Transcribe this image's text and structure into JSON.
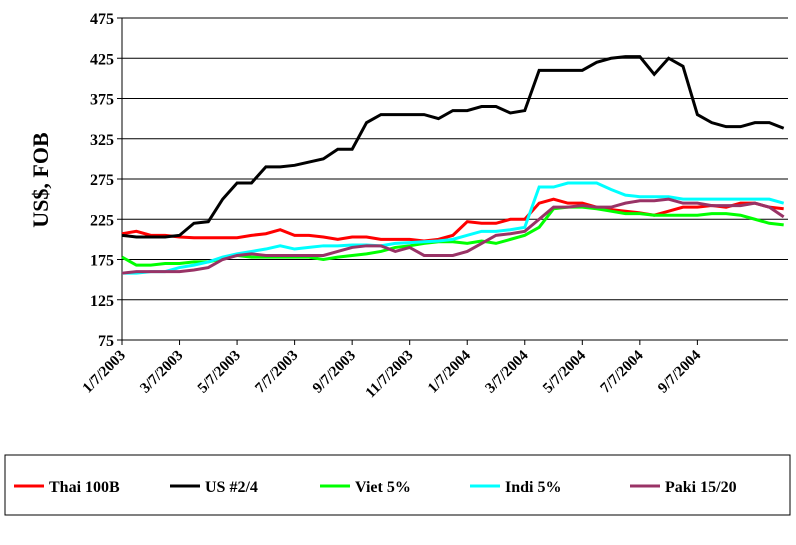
{
  "chart_data": {
    "type": "line",
    "y_label": "US$, FOB",
    "categories": [
      "1/7/2003",
      null,
      null,
      null,
      "3/7/2003",
      null,
      null,
      null,
      "5/7/2003",
      null,
      null,
      null,
      "7/7/2003",
      null,
      null,
      null,
      "9/7/2003",
      null,
      null,
      null,
      "11/7/2003",
      null,
      null,
      null,
      "1/7/2004",
      null,
      null,
      null,
      "3/7/2004",
      null,
      null,
      null,
      "5/7/2004",
      null,
      null,
      null,
      "7/7/2004",
      null,
      null,
      null,
      "9/7/2004",
      null,
      null,
      null,
      null,
      null,
      null
    ],
    "ylim": [
      75,
      475
    ],
    "yticks": [
      75,
      125,
      175,
      225,
      275,
      325,
      375,
      425,
      475
    ],
    "grid": true,
    "legend": "bottom",
    "series": [
      {
        "name": "Thai 100B",
        "color": "#ff0000",
        "values": [
          207,
          210,
          205,
          205,
          203,
          202,
          202,
          202,
          202,
          205,
          207,
          212,
          205,
          205,
          203,
          200,
          203,
          203,
          200,
          200,
          200,
          198,
          200,
          205,
          222,
          220,
          220,
          225,
          225,
          245,
          250,
          245,
          245,
          240,
          237,
          235,
          233,
          230,
          235,
          240,
          240,
          242,
          240,
          245,
          245,
          240,
          238
        ]
      },
      {
        "name": "US #2/4",
        "color": "#000000",
        "values": [
          205,
          203,
          203,
          203,
          205,
          220,
          222,
          250,
          270,
          270,
          290,
          290,
          292,
          296,
          300,
          312,
          312,
          345,
          355,
          355,
          355,
          355,
          350,
          360,
          360,
          365,
          365,
          357,
          360,
          410,
          410,
          410,
          410,
          420,
          425,
          427,
          427,
          405,
          425,
          415,
          355,
          345,
          340,
          340,
          345,
          345,
          338
        ]
      },
      {
        "name": "Viet 5%",
        "color": "#00ff00",
        "values": [
          178,
          168,
          168,
          170,
          170,
          172,
          172,
          176,
          180,
          178,
          178,
          178,
          178,
          178,
          175,
          178,
          180,
          182,
          185,
          190,
          192,
          195,
          197,
          197,
          195,
          198,
          195,
          200,
          205,
          215,
          238,
          240,
          240,
          238,
          235,
          232,
          232,
          230,
          230,
          230,
          230,
          232,
          232,
          230,
          225,
          220,
          218
        ]
      },
      {
        "name": "Indi 5%",
        "color": "#00ffff",
        "values": [
          158,
          158,
          160,
          160,
          165,
          168,
          172,
          178,
          182,
          185,
          188,
          192,
          188,
          190,
          192,
          192,
          193,
          193,
          192,
          195,
          196,
          197,
          198,
          200,
          205,
          210,
          210,
          212,
          215,
          265,
          265,
          270,
          270,
          270,
          262,
          255,
          253,
          253,
          253,
          250,
          250,
          250,
          250,
          250,
          250,
          250,
          245
        ]
      },
      {
        "name": "Paki 15/20",
        "color": "#993366",
        "values": [
          158,
          160,
          160,
          160,
          160,
          162,
          165,
          175,
          180,
          182,
          180,
          180,
          180,
          180,
          180,
          185,
          190,
          192,
          192,
          185,
          190,
          180,
          180,
          180,
          185,
          195,
          205,
          207,
          210,
          225,
          240,
          240,
          242,
          240,
          240,
          245,
          248,
          248,
          250,
          245,
          245,
          242,
          242,
          242,
          245,
          240,
          228
        ]
      }
    ]
  }
}
